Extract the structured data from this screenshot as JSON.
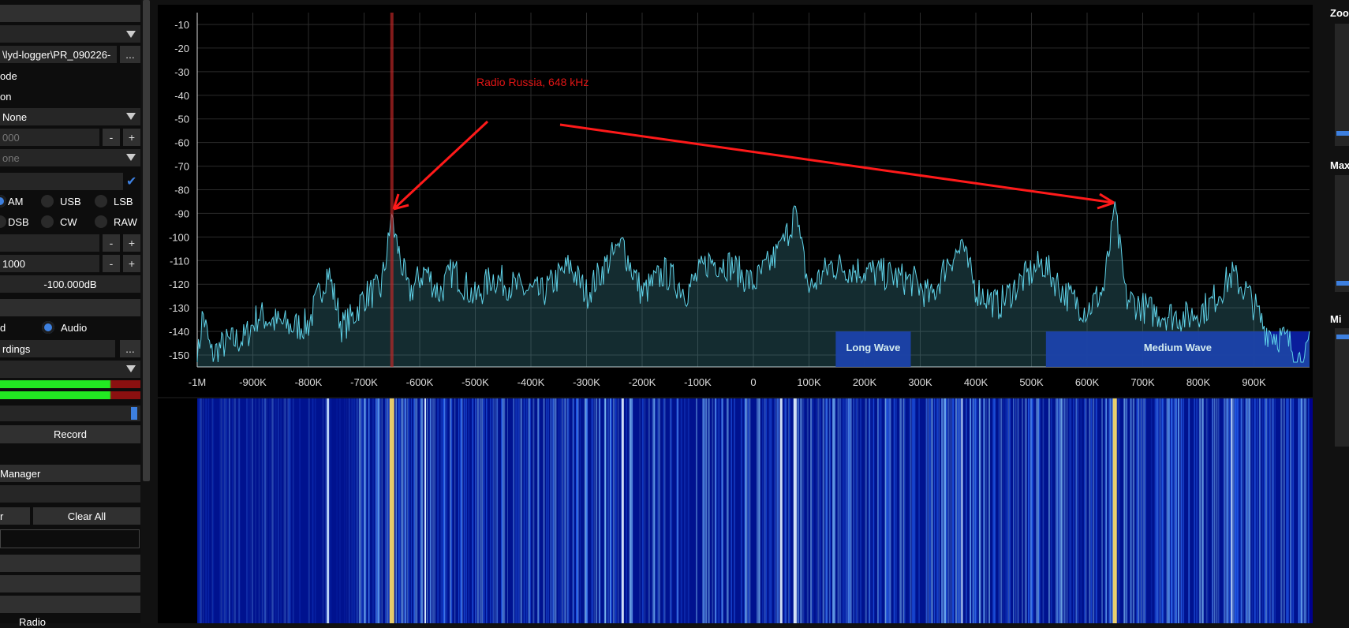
{
  "sidebar": {
    "file_path": "\\lyd-logger\\PR_090226-",
    "browse_label": "...",
    "iq_mode_label": "ode",
    "dc_offset_label": "on",
    "decimation_value": "None",
    "offset_value": "000",
    "minus": "-",
    "plus": "+",
    "rds_value": "one",
    "check_mark": "✔",
    "modes": [
      "AM",
      "USB",
      "LSB",
      "DSB",
      "CW",
      "RAW"
    ],
    "bandwidth_value": "1000",
    "squelch_value": "-100.000dB",
    "rec_source_left": "d",
    "rec_source_audio": "Audio",
    "rec_path": "rdings",
    "record_label": "Record",
    "manager_title": " Manager",
    "left_btn_label": "r",
    "clear_all_label": "Clear All",
    "radio_label": "Radio"
  },
  "spectrum": {
    "annotation": "Radio Russia, 648 kHz",
    "band_long_wave": "Long Wave",
    "band_medium_wave": "Medium Wave"
  },
  "right_panel": {
    "zoom_label": "Zoom",
    "max_label": "Max",
    "min_label": "Mi"
  },
  "chart_data": {
    "type": "line",
    "title": "",
    "xlabel": "",
    "ylabel": "",
    "x_tick_labels": [
      "-1M",
      "-900K",
      "-800K",
      "-700K",
      "-600K",
      "-500K",
      "-400K",
      "-300K",
      "-200K",
      "-100K",
      "0",
      "100K",
      "200K",
      "300K",
      "400K",
      "500K",
      "600K",
      "700K",
      "800K",
      "900K"
    ],
    "y_tick_labels": [
      "-10",
      "-20",
      "-30",
      "-40",
      "-50",
      "-60",
      "-70",
      "-80",
      "-90",
      "-100",
      "-110",
      "-120",
      "-130",
      "-140",
      "-150"
    ],
    "xlim": [
      -1000,
      1000
    ],
    "ylim": [
      -155,
      -5
    ],
    "x_unit": "kHz offset",
    "grid": true,
    "marker_khz": -650,
    "bands": [
      {
        "name": "Long Wave",
        "from_khz": 148,
        "to_khz": 283
      },
      {
        "name": "Medium Wave",
        "from_khz": 526,
        "to_khz": 1000
      }
    ],
    "peaks": [
      {
        "x": -1000,
        "y": -150
      },
      {
        "x": -990,
        "y": -128
      },
      {
        "x": -975,
        "y": -146
      },
      {
        "x": -950,
        "y": -141
      },
      {
        "x": -915,
        "y": -139
      },
      {
        "x": -890,
        "y": -129
      },
      {
        "x": -860,
        "y": -132
      },
      {
        "x": -830,
        "y": -134
      },
      {
        "x": -800,
        "y": -133
      },
      {
        "x": -765,
        "y": -110
      },
      {
        "x": -740,
        "y": -134
      },
      {
        "x": -720,
        "y": -130
      },
      {
        "x": -700,
        "y": -121
      },
      {
        "x": -670,
        "y": -118
      },
      {
        "x": -650,
        "y": -90
      },
      {
        "x": -620,
        "y": -120
      },
      {
        "x": -590,
        "y": -110
      },
      {
        "x": -565,
        "y": -120
      },
      {
        "x": -540,
        "y": -110
      },
      {
        "x": -500,
        "y": -122
      },
      {
        "x": -470,
        "y": -113
      },
      {
        "x": -420,
        "y": -118
      },
      {
        "x": -380,
        "y": -120
      },
      {
        "x": -330,
        "y": -108
      },
      {
        "x": -300,
        "y": -120
      },
      {
        "x": -260,
        "y": -106
      },
      {
        "x": -235,
        "y": -100
      },
      {
        "x": -200,
        "y": -120
      },
      {
        "x": -160,
        "y": -111
      },
      {
        "x": -120,
        "y": -119
      },
      {
        "x": -80,
        "y": -106
      },
      {
        "x": -40,
        "y": -108
      },
      {
        "x": 0,
        "y": -116
      },
      {
        "x": 50,
        "y": -101
      },
      {
        "x": 75,
        "y": -86
      },
      {
        "x": 100,
        "y": -118
      },
      {
        "x": 140,
        "y": -108
      },
      {
        "x": 190,
        "y": -110
      },
      {
        "x": 240,
        "y": -112
      },
      {
        "x": 290,
        "y": -115
      },
      {
        "x": 320,
        "y": -122
      },
      {
        "x": 350,
        "y": -106
      },
      {
        "x": 375,
        "y": -101
      },
      {
        "x": 400,
        "y": -118
      },
      {
        "x": 440,
        "y": -125
      },
      {
        "x": 480,
        "y": -115
      },
      {
        "x": 520,
        "y": -107
      },
      {
        "x": 560,
        "y": -120
      },
      {
        "x": 600,
        "y": -127
      },
      {
        "x": 630,
        "y": -118
      },
      {
        "x": 650,
        "y": -85
      },
      {
        "x": 670,
        "y": -122
      },
      {
        "x": 720,
        "y": -128
      },
      {
        "x": 780,
        "y": -130
      },
      {
        "x": 820,
        "y": -125
      },
      {
        "x": 860,
        "y": -112
      },
      {
        "x": 890,
        "y": -120
      },
      {
        "x": 920,
        "y": -135
      },
      {
        "x": 960,
        "y": -140
      },
      {
        "x": 990,
        "y": -150
      },
      {
        "x": 1000,
        "y": -142
      }
    ]
  }
}
